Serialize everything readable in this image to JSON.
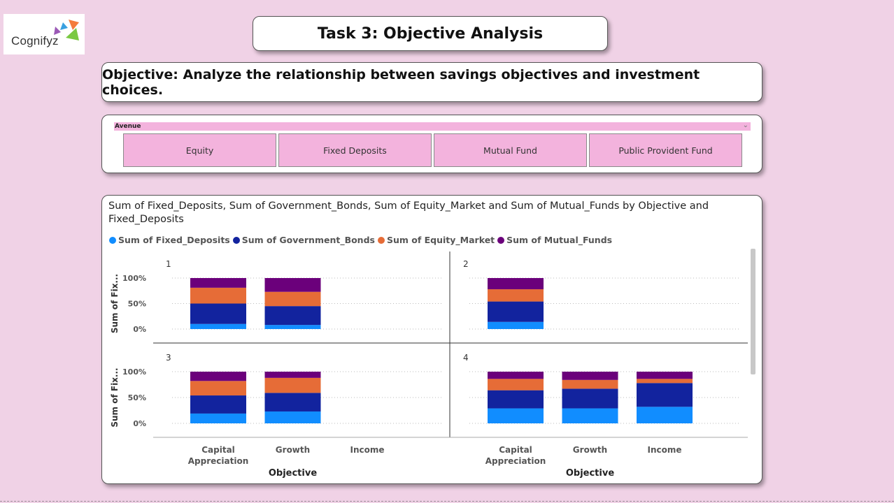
{
  "logo": {
    "text": "Cognifyz"
  },
  "header": {
    "title": "Task 3: Objective Analysis"
  },
  "objective": {
    "text": "Objective:  Analyze the relationship between savings objectives and investment choices."
  },
  "slicer": {
    "field": "Avenue",
    "options": [
      "Equity",
      "Fixed Deposits",
      "Mutual Fund",
      "Public Provident Fund"
    ]
  },
  "chart": {
    "title_line1": "Sum of Fixed_Deposits, Sum of Government_Bonds, Sum of Equity_Market and Sum of Mutual_Funds by Objective and",
    "title_line2": "Fixed_Deposits",
    "legend": [
      "Sum of Fixed_Deposits",
      "Sum of Government_Bonds",
      "Sum of Equity_Market",
      "Sum of Mutual_Funds"
    ]
  },
  "colors": {
    "fixed_deposits": "#118dff",
    "government_bonds": "#12239e",
    "equity_market": "#e66c37",
    "mutual_funds": "#6b007b"
  },
  "chart_data": {
    "type": "bar",
    "stacking": "100%",
    "x_title": "Objective",
    "y_title": "Sum of Fix...",
    "categories": [
      "Capital Appreciation",
      "Growth",
      "Income"
    ],
    "y_ticks": [
      "0%",
      "50%",
      "100%"
    ],
    "series_names": [
      "Sum of Fixed_Deposits",
      "Sum of Government_Bonds",
      "Sum of Equity_Market",
      "Sum of Mutual_Funds"
    ],
    "panels": [
      {
        "label": "1",
        "values": [
          [
            10,
            40,
            31,
            19
          ],
          [
            8,
            37,
            28,
            27
          ],
          null
        ]
      },
      {
        "label": "2",
        "values": [
          [
            14,
            40,
            24,
            22
          ],
          null,
          null
        ]
      },
      {
        "label": "3",
        "values": [
          [
            19,
            35,
            28,
            18
          ],
          [
            23,
            36,
            29,
            12
          ],
          null
        ]
      },
      {
        "label": "4",
        "values": [
          [
            29,
            35,
            22,
            14
          ],
          [
            29,
            38,
            17,
            16
          ],
          [
            32,
            46,
            8,
            14
          ]
        ]
      }
    ]
  }
}
